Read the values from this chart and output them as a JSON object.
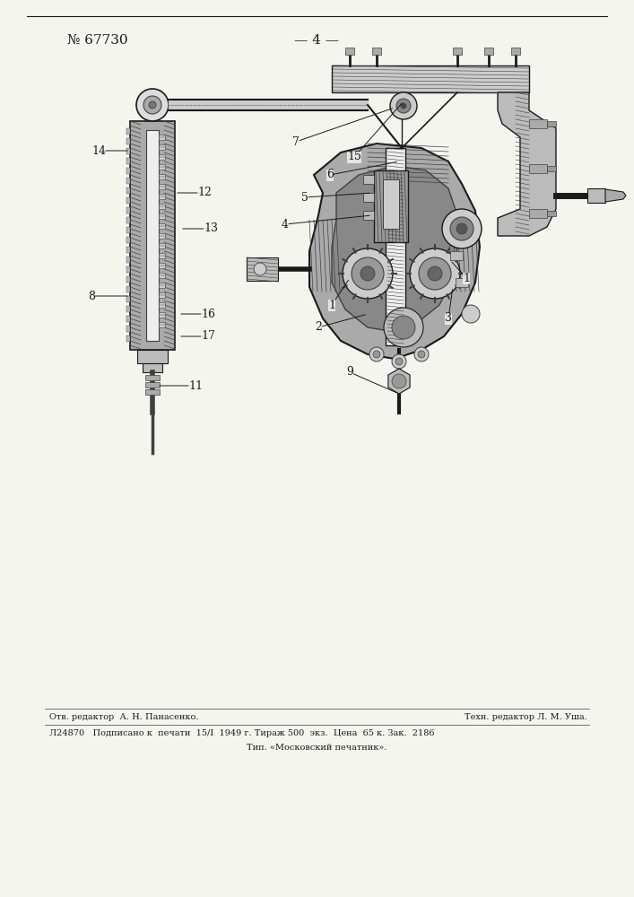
{
  "patent_number": "№ 67730",
  "page_number": "— 4 —",
  "bg": "#f5f5f0",
  "black": "#1a1a1a",
  "dark_gray": "#404040",
  "mid_gray": "#888888",
  "light_gray": "#cccccc",
  "hatch_gray": "#999999",
  "footer_line1a": "Отв. редактор  А. Н. Панасенко.",
  "footer_line1b": "Техн. редактор Л. М. Уша.",
  "footer_line2": "Л24870   Подписано к  печати  15/I  1949 г. Тираж 500  экз.  Цена  65 к. Зак.  2186",
  "footer_line3": "Тип. «Московский печатник»."
}
